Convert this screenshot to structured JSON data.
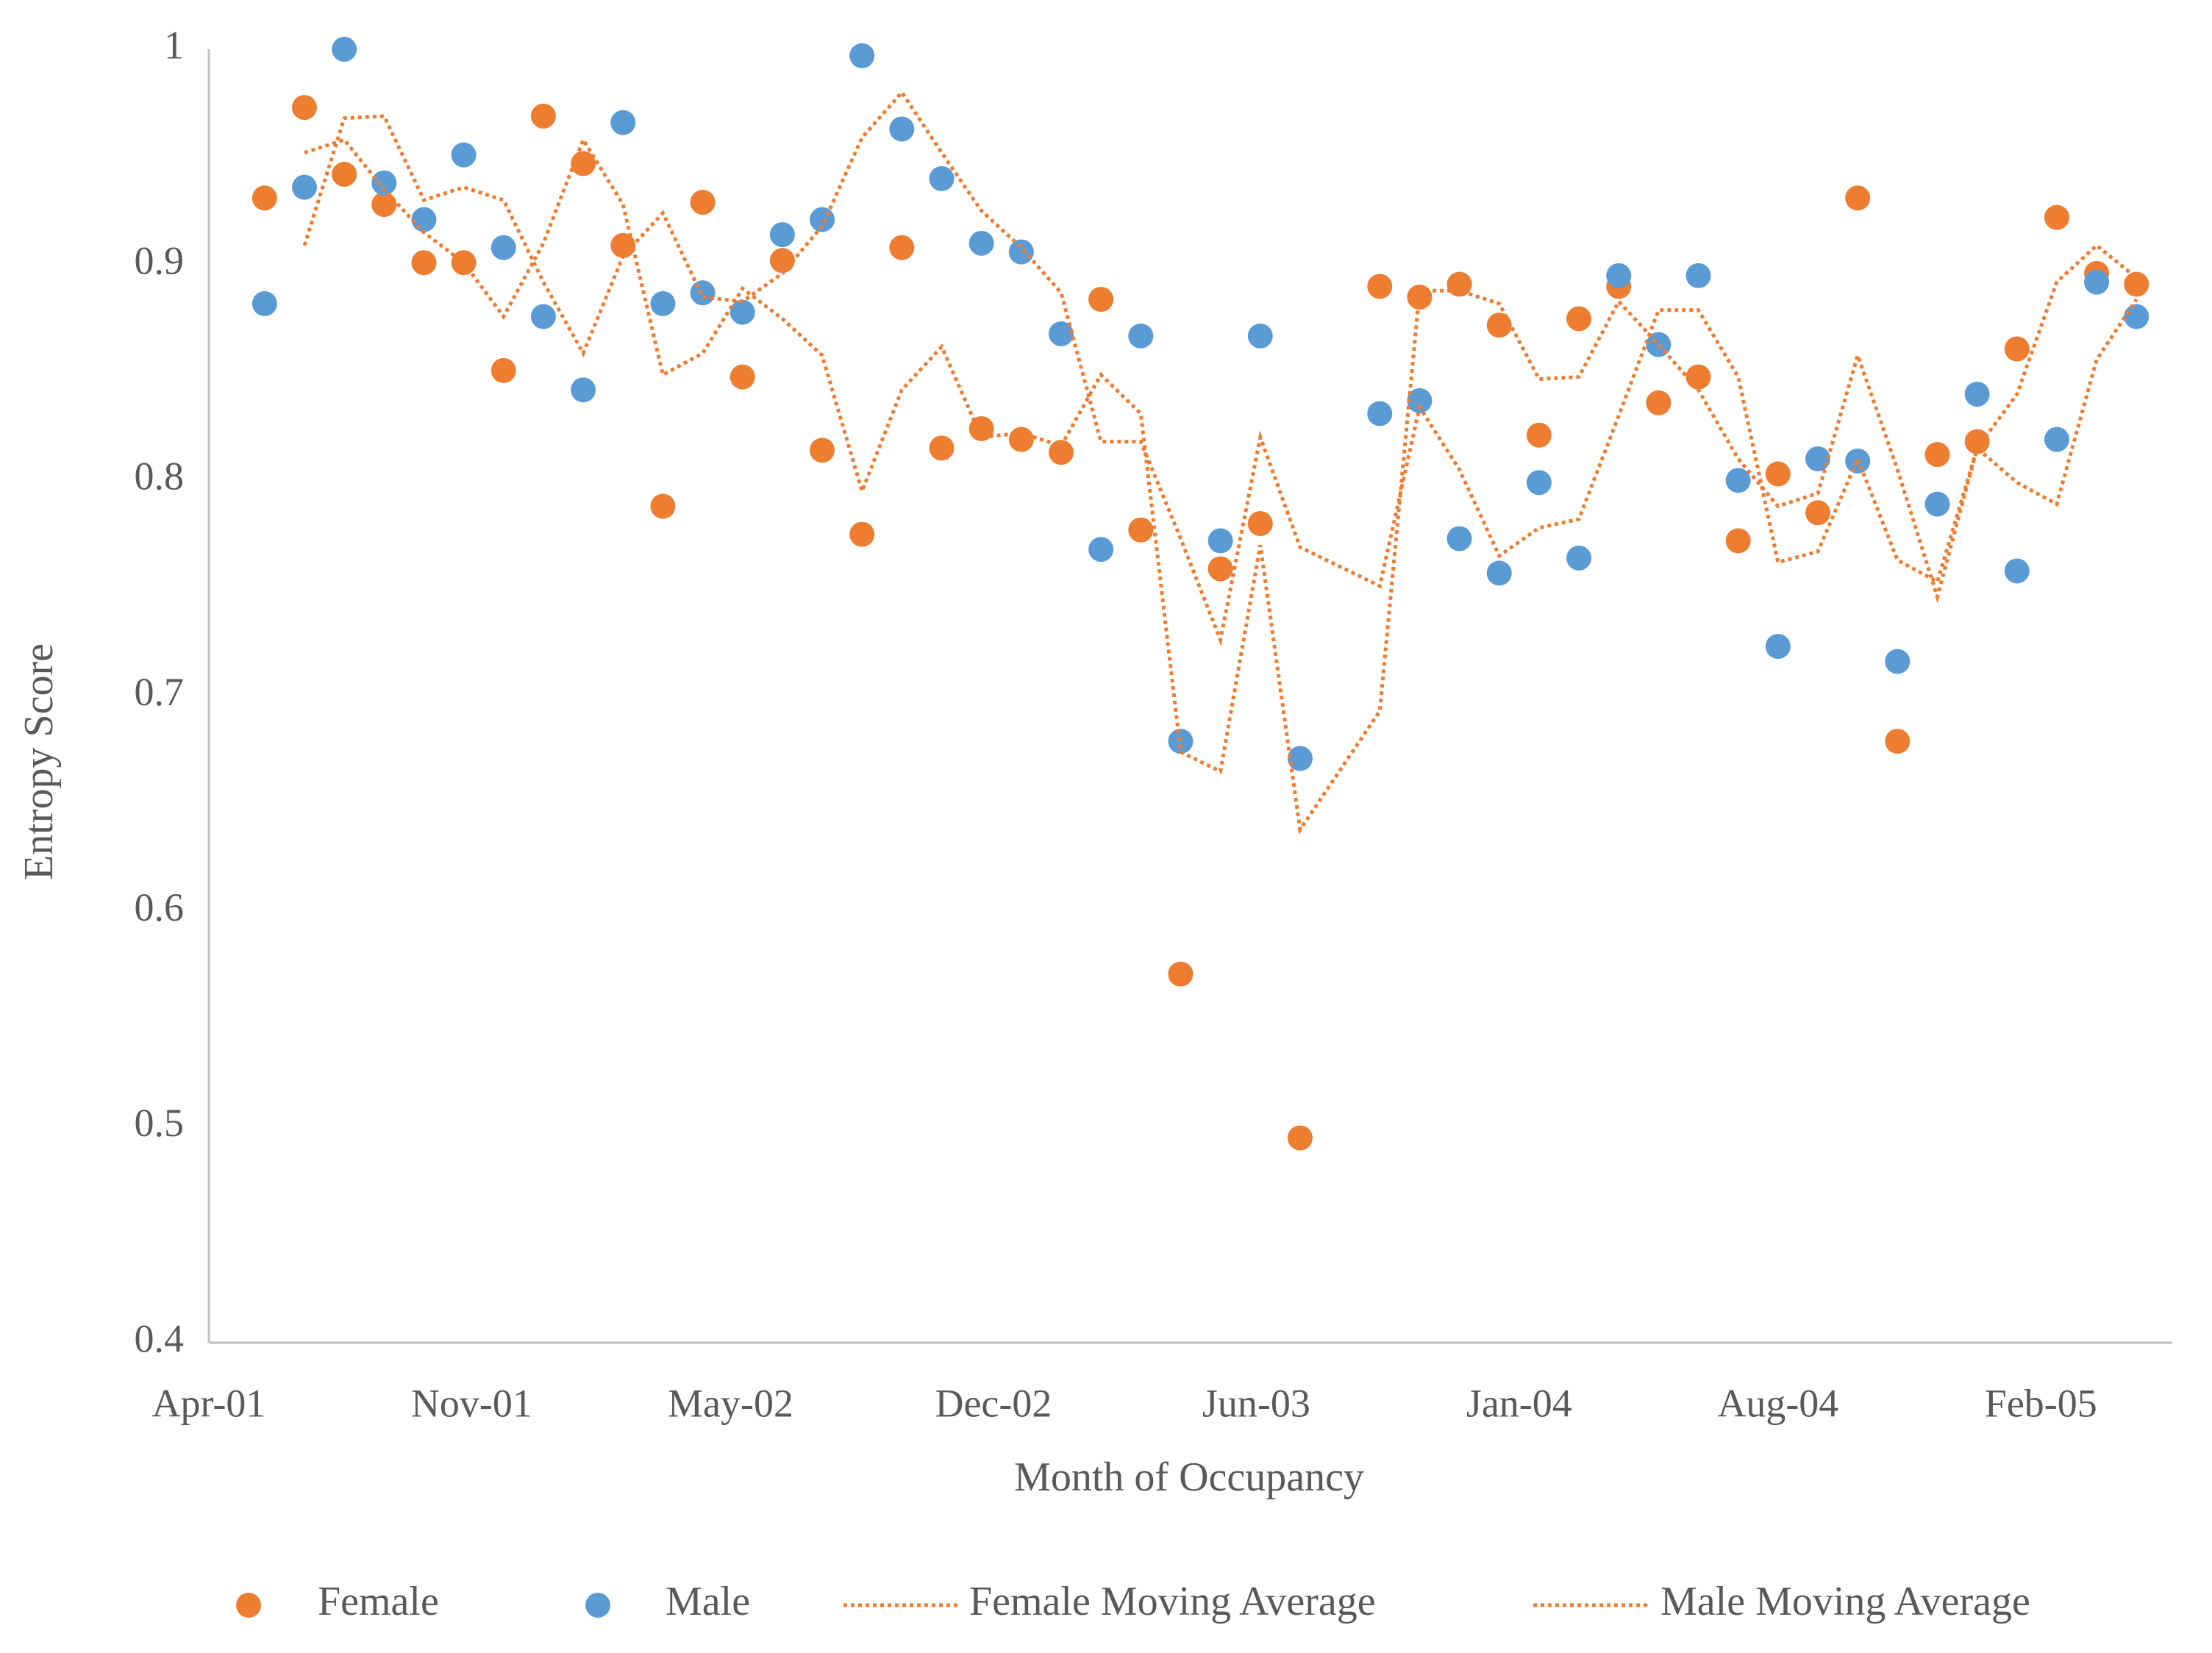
{
  "chart_data": {
    "type": "scatter",
    "xlabel": "Month of Occupancy",
    "ylabel": "Entropy Score",
    "xlim": [
      0,
      49.3
    ],
    "xticks": [
      {
        "value": 0,
        "label": "Apr-01"
      },
      {
        "value": 6.6,
        "label": "Nov-01"
      },
      {
        "value": 13.1,
        "label": "May-02"
      },
      {
        "value": 19.7,
        "label": "Dec-02"
      },
      {
        "value": 26.3,
        "label": "Jun-03"
      },
      {
        "value": 32.9,
        "label": "Jan-04"
      },
      {
        "value": 39.4,
        "label": "Aug-04"
      },
      {
        "value": 46,
        "label": "Feb-05"
      }
    ],
    "ylim": [
      0.4,
      1
    ],
    "yticks": [
      0.4,
      0.5,
      0.6,
      0.7,
      0.8,
      0.9,
      1
    ],
    "grid": false,
    "legend": "bottom",
    "series": [
      {
        "name": "Female",
        "mode": "markers",
        "color": "#ed7d31",
        "x": [
          1.4,
          2.4,
          3.4,
          4.4,
          5.4,
          6.4,
          7.4,
          8.4,
          9.4,
          10.4,
          11.4,
          12.4,
          13.4,
          14.4,
          15.4,
          16.4,
          17.4,
          18.4,
          19.4,
          20.4,
          21.4,
          22.4,
          23.4,
          24.4,
          25.4,
          26.4,
          27.4,
          28.4,
          29.4,
          30.4,
          31.4,
          32.4,
          33.4,
          34.4,
          35.4,
          36.4,
          37.4,
          38.4,
          39.4,
          40.4,
          41.4,
          42.4,
          43.4,
          44.4,
          45.4,
          46.4,
          47.4,
          48.4
        ],
        "values": [
          0.931,
          0.973,
          0.942,
          0.928,
          0.901,
          0.901,
          0.851,
          0.969,
          0.947,
          0.909,
          0.788,
          0.929,
          0.848,
          0.902,
          0.814,
          0.775,
          0.908,
          0.815,
          0.824,
          0.819,
          0.813,
          0.884,
          0.777,
          0.571,
          0.759,
          0.78,
          0.495,
          null,
          0.89,
          0.885,
          0.891,
          0.872,
          0.821,
          0.875,
          0.89,
          0.836,
          0.848,
          0.772,
          0.803,
          0.785,
          0.931,
          0.679,
          0.812,
          0.818,
          0.861,
          0.922,
          0.896,
          0.891
        ]
      },
      {
        "name": "Male",
        "mode": "markers",
        "color": "#5b9bd5",
        "x": [
          1.4,
          2.4,
          3.4,
          4.4,
          5.4,
          6.4,
          7.4,
          8.4,
          9.4,
          10.4,
          11.4,
          12.4,
          13.4,
          14.4,
          15.4,
          16.4,
          17.4,
          18.4,
          19.4,
          20.4,
          21.4,
          22.4,
          23.4,
          24.4,
          25.4,
          26.4,
          27.4,
          28.4,
          29.4,
          30.4,
          31.4,
          32.4,
          33.4,
          34.4,
          35.4,
          36.4,
          37.4,
          38.4,
          39.4,
          40.4,
          41.4,
          42.4,
          43.4,
          44.4,
          45.4,
          46.4,
          47.4,
          48.4
        ],
        "values": [
          0.882,
          0.936,
          1.0,
          0.938,
          0.921,
          0.951,
          0.908,
          0.876,
          0.842,
          0.966,
          0.882,
          0.887,
          0.878,
          0.914,
          0.921,
          0.997,
          0.963,
          0.94,
          0.91,
          0.906,
          0.868,
          0.768,
          0.867,
          0.679,
          0.772,
          0.867,
          0.671,
          null,
          0.831,
          0.837,
          0.773,
          0.757,
          0.799,
          0.764,
          0.895,
          0.863,
          0.895,
          0.8,
          0.723,
          0.81,
          0.809,
          0.716,
          0.789,
          0.84,
          0.758,
          0.819,
          0.892,
          0.876
        ]
      },
      {
        "name": "Female Moving Average",
        "mode": "line",
        "dash": "dotted",
        "color": "#ed7d31",
        "x": [
          2.4,
          3.4,
          4.4,
          5.4,
          6.4,
          7.4,
          8.4,
          9.4,
          10.4,
          11.4,
          12.4,
          13.4,
          14.4,
          15.4,
          16.4,
          17.4,
          18.4,
          19.4,
          20.4,
          21.4,
          22.4,
          23.4,
          24.4,
          25.4,
          26.4,
          27.4,
          29.4,
          30.4,
          31.4,
          32.4,
          33.4,
          34.4,
          35.4,
          36.4,
          37.4,
          38.4,
          39.4,
          40.4,
          41.4,
          42.4,
          43.4,
          44.4,
          45.4,
          46.4,
          47.4,
          48.4
        ],
        "values": [
          0.952,
          0.958,
          0.935,
          0.915,
          0.901,
          0.876,
          0.91,
          0.958,
          0.928,
          0.849,
          0.859,
          0.889,
          0.875,
          0.858,
          0.795,
          0.842,
          0.862,
          0.82,
          0.822,
          0.816,
          0.849,
          0.831,
          0.674,
          0.665,
          0.77,
          0.638,
          0.693,
          0.888,
          0.888,
          0.882,
          0.847,
          0.848,
          0.883,
          0.863,
          0.842,
          0.81,
          0.788,
          0.794,
          0.858,
          0.805,
          0.746,
          0.815,
          0.84,
          0.892,
          0.909,
          0.894
        ]
      },
      {
        "name": "Male Moving Average",
        "mode": "line",
        "dash": "dotted",
        "color": "#ed7d31",
        "x": [
          2.4,
          3.4,
          4.4,
          5.4,
          6.4,
          7.4,
          8.4,
          9.4,
          10.4,
          11.4,
          12.4,
          13.4,
          14.4,
          15.4,
          16.4,
          17.4,
          18.4,
          19.4,
          20.4,
          21.4,
          22.4,
          23.4,
          24.4,
          25.4,
          26.4,
          27.4,
          29.4,
          30.4,
          31.4,
          32.4,
          33.4,
          34.4,
          35.4,
          36.4,
          37.4,
          38.4,
          39.4,
          40.4,
          41.4,
          42.4,
          43.4,
          44.4,
          45.4,
          46.4,
          47.4,
          48.4
        ],
        "values": [
          0.909,
          0.968,
          0.969,
          0.93,
          0.936,
          0.93,
          0.892,
          0.859,
          0.904,
          0.924,
          0.885,
          0.883,
          0.896,
          0.918,
          0.959,
          0.98,
          0.952,
          0.925,
          0.908,
          0.887,
          0.818,
          0.818,
          0.773,
          0.726,
          0.82,
          0.769,
          0.751,
          0.834,
          0.805,
          0.765,
          0.778,
          0.782,
          0.83,
          0.879,
          0.879,
          0.848,
          0.762,
          0.767,
          0.81,
          0.763,
          0.753,
          0.815,
          0.799,
          0.789,
          0.856,
          0.884
        ]
      }
    ]
  }
}
